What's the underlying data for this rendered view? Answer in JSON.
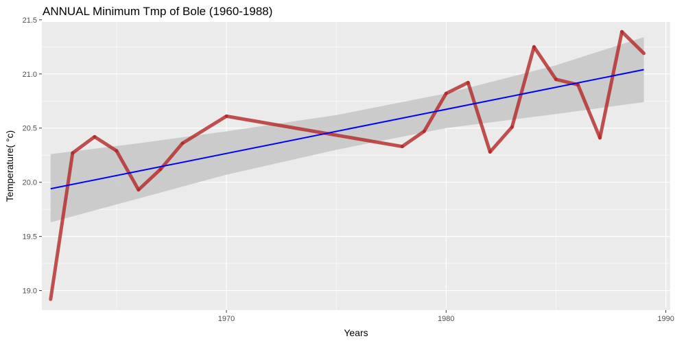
{
  "chart_data": {
    "type": "line",
    "title": "ANNUAL Minimum Tmp of Bole (1960-1988)",
    "xlabel": "Years",
    "ylabel": "Temperature( °c)",
    "xlim": [
      1961.6,
      1990.2
    ],
    "ylim": [
      18.82,
      21.48
    ],
    "x_ticks": [
      1970,
      1980,
      1990
    ],
    "x_tick_labels": [
      "1970",
      "1980",
      "1990"
    ],
    "y_ticks": [
      19.0,
      19.5,
      20.0,
      20.5,
      21.0,
      21.5
    ],
    "y_tick_labels": [
      "19.0",
      "19.5",
      "20.0",
      "20.5",
      "21.0",
      "21.5"
    ],
    "grid": true,
    "series": [
      {
        "kind": "observed",
        "color": "#b22222",
        "x": [
          1962,
          1963,
          1964,
          1965,
          1966,
          1967,
          1968,
          1970,
          1978,
          1979,
          1980,
          1981,
          1982,
          1983,
          1984,
          1985,
          1986,
          1987,
          1988,
          1989
        ],
        "y": [
          18.92,
          20.27,
          20.42,
          20.29,
          19.93,
          20.12,
          20.36,
          20.61,
          20.33,
          20.47,
          20.82,
          20.92,
          20.28,
          20.51,
          21.25,
          20.95,
          20.9,
          20.41,
          21.39,
          21.19
        ]
      },
      {
        "kind": "linear-fit",
        "color": "#0000ff",
        "x": [
          1962,
          1989
        ],
        "y": [
          19.94,
          21.04
        ]
      }
    ],
    "confidence_band": {
      "color": "#c8c8c8",
      "x": [
        1962,
        1966,
        1970,
        1975,
        1980,
        1985,
        1989
      ],
      "lower": [
        19.63,
        19.85,
        20.07,
        20.3,
        20.5,
        20.63,
        20.74
      ],
      "upper": [
        20.26,
        20.36,
        20.47,
        20.62,
        20.82,
        21.08,
        21.34
      ]
    }
  }
}
